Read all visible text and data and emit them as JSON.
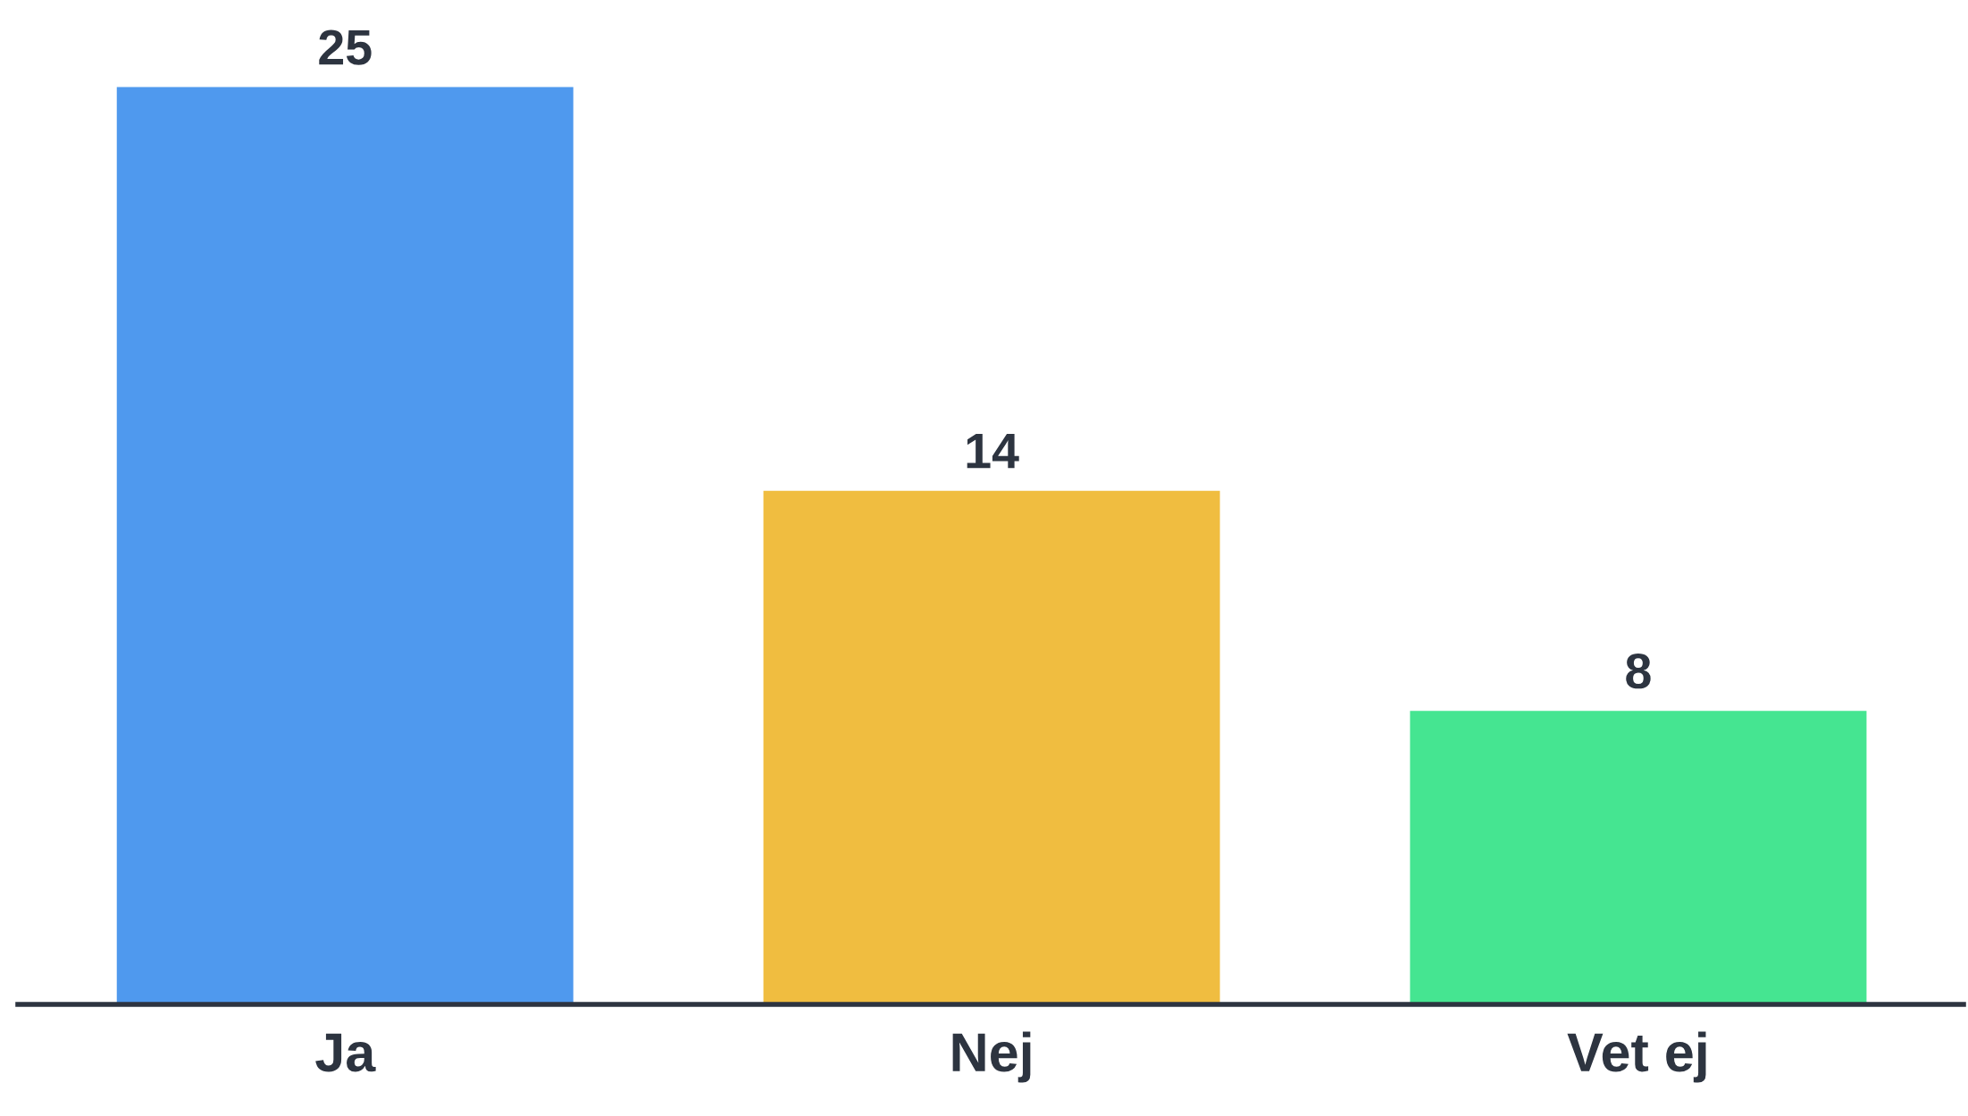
{
  "chart_data": {
    "type": "bar",
    "categories": [
      "Ja",
      "Nej",
      "Vet ej"
    ],
    "values": [
      25,
      14,
      8
    ],
    "colors": [
      "#4f99ee",
      "#f0bd40",
      "#45e591"
    ],
    "data_labels": true,
    "grid": false,
    "legend": false
  }
}
